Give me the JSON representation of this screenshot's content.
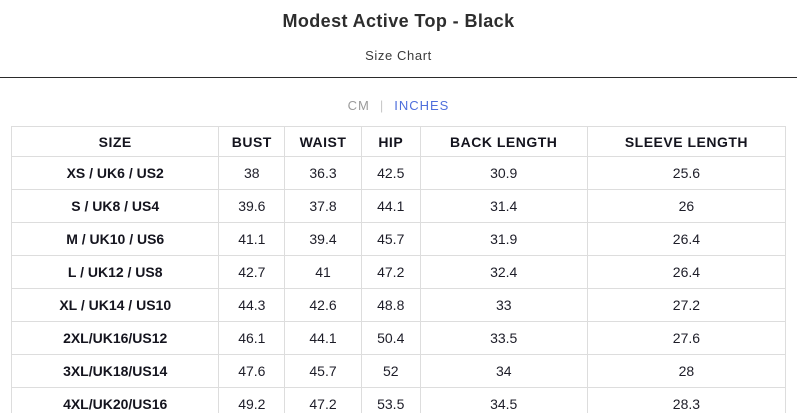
{
  "header": {
    "title": "Modest Active Top - Black",
    "subtitle": "Size Chart"
  },
  "unit_toggle": {
    "cm_label": "CM",
    "separator": "|",
    "inches_label": "INCHES",
    "selected": "INCHES"
  },
  "colors": {
    "accent_blue": "#4f6fdc",
    "muted_gray": "#9b9b9b",
    "divider_dark": "#2b2b2b",
    "table_border": "#dddddd",
    "text_dark": "#1d1d1d"
  },
  "table": {
    "columns": [
      "SIZE",
      "BUST",
      "WAIST",
      "HIP",
      "BACK LENGTH",
      "SLEEVE LENGTH"
    ],
    "rows": [
      {
        "size": "XS / UK6 / US2",
        "values": [
          "38",
          "36.3",
          "42.5",
          "30.9",
          "25.6"
        ]
      },
      {
        "size": "S / UK8 / US4",
        "values": [
          "39.6",
          "37.8",
          "44.1",
          "31.4",
          "26"
        ]
      },
      {
        "size": "M / UK10 / US6",
        "values": [
          "41.1",
          "39.4",
          "45.7",
          "31.9",
          "26.4"
        ]
      },
      {
        "size": "L / UK12 / US8",
        "values": [
          "42.7",
          "41",
          "47.2",
          "32.4",
          "26.4"
        ]
      },
      {
        "size": "XL / UK14 / US10",
        "values": [
          "44.3",
          "42.6",
          "48.8",
          "33",
          "27.2"
        ]
      },
      {
        "size": "2XL/UK16/US12",
        "values": [
          "46.1",
          "44.1",
          "50.4",
          "33.5",
          "27.6"
        ]
      },
      {
        "size": "3XL/UK18/US14",
        "values": [
          "47.6",
          "45.7",
          "52",
          "34",
          "28"
        ]
      },
      {
        "size": "4XL/UK20/US16",
        "values": [
          "49.2",
          "47.2",
          "53.5",
          "34.5",
          "28.3"
        ]
      }
    ]
  }
}
